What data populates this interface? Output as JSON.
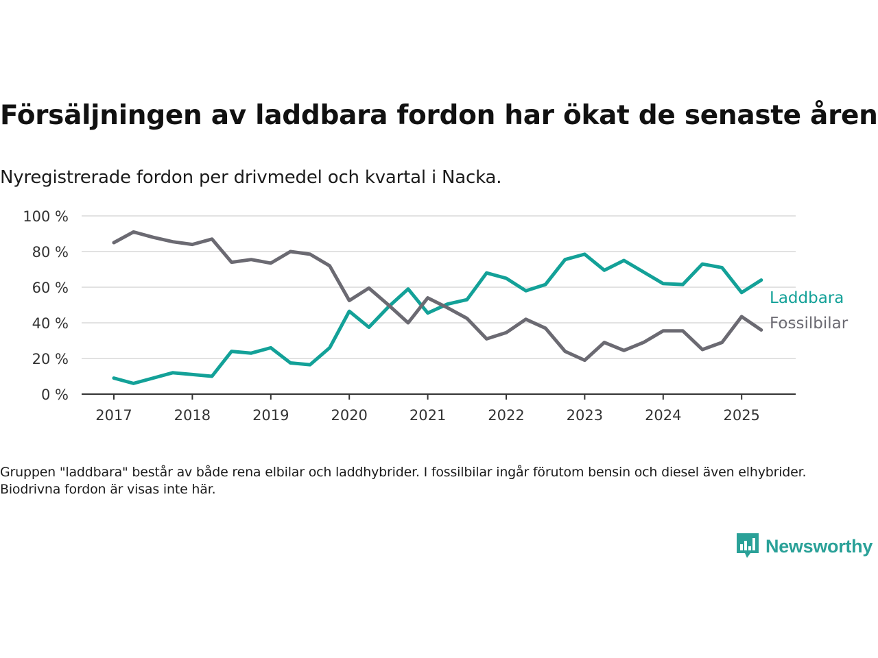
{
  "title": "Försäljningen av laddbara fordon har ökat de senaste åren",
  "subtitle": "Nyregistrerade fordon per drivmedel och kvartal i Nacka.",
  "footnote": "Gruppen \"laddbara\" består av både rena elbilar och laddhybrider. I fossilbilar ingår förutom bensin och diesel även elhybrider. Biodrivna fordon är visas inte här.",
  "brand": {
    "name": "Newsworthy",
    "color": "#2aa198",
    "icon": "bar-chart-speech-bubble-icon"
  },
  "chart_data": {
    "type": "line",
    "x_unit": "quarter",
    "x": [
      "2017 Q1",
      "2017 Q2",
      "2017 Q3",
      "2017 Q4",
      "2018 Q1",
      "2018 Q2",
      "2018 Q3",
      "2018 Q4",
      "2019 Q1",
      "2019 Q2",
      "2019 Q3",
      "2019 Q4",
      "2020 Q1",
      "2020 Q2",
      "2020 Q3",
      "2020 Q4",
      "2021 Q1",
      "2021 Q2",
      "2021 Q3",
      "2021 Q4",
      "2022 Q1",
      "2022 Q2",
      "2022 Q3",
      "2022 Q4",
      "2023 Q1",
      "2023 Q2",
      "2023 Q3",
      "2023 Q4",
      "2024 Q1",
      "2024 Q2",
      "2024 Q3",
      "2024 Q4",
      "2025 Q1",
      "2025 Q2"
    ],
    "x_ticks": [
      "2017",
      "2018",
      "2019",
      "2020",
      "2021",
      "2022",
      "2023",
      "2024",
      "2025"
    ],
    "y_ticks": [
      "0 %",
      "20 %",
      "40 %",
      "60 %",
      "80 %",
      "100 %"
    ],
    "ylim": [
      0,
      100
    ],
    "grid": true,
    "legend_placement": "right, inline at line ends",
    "series": [
      {
        "name": "Laddbara",
        "color": "#13a198",
        "values": [
          9,
          6,
          9,
          12,
          11,
          10,
          24,
          23,
          26,
          17.5,
          16.5,
          26,
          46.5,
          37.5,
          49,
          59,
          45.5,
          50.5,
          53,
          68,
          65,
          58,
          61.5,
          75.5,
          78.5,
          69.5,
          75,
          68.5,
          62,
          61.5,
          73,
          71,
          57,
          64
        ]
      },
      {
        "name": "Fossilbilar",
        "color": "#6b6a72",
        "values": [
          85,
          91,
          88,
          85.5,
          84,
          87,
          74,
          75.5,
          73.5,
          80,
          78.5,
          72,
          52.5,
          59.5,
          50,
          40,
          54,
          48.5,
          42.5,
          31,
          34.5,
          42,
          37,
          24,
          19,
          29,
          24.5,
          29,
          35.5,
          35.5,
          25,
          29,
          43.5,
          36
        ]
      }
    ]
  }
}
